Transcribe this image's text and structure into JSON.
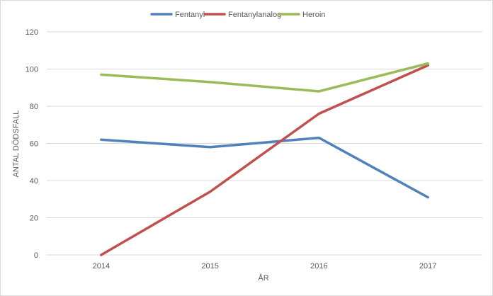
{
  "chart_data": {
    "type": "line",
    "title": "",
    "xlabel": "ÅR",
    "ylabel": "ANTAL DÖDSFALL",
    "categories": [
      "2014",
      "2015",
      "2016",
      "2017"
    ],
    "ylim": [
      0,
      120
    ],
    "yticks": [
      "0",
      "20",
      "40",
      "60",
      "80",
      "100",
      "120"
    ],
    "grid": true,
    "legend": "top",
    "series": [
      {
        "name": "Fentanyl",
        "color": "#4f81bd",
        "values": [
          62,
          58,
          63,
          31
        ]
      },
      {
        "name": "Fentanylanalog",
        "color": "#c0504d",
        "values": [
          0,
          34,
          76,
          102
        ]
      },
      {
        "name": "Heroin",
        "color": "#9bbb59",
        "values": [
          97,
          93,
          88,
          103
        ]
      }
    ]
  }
}
